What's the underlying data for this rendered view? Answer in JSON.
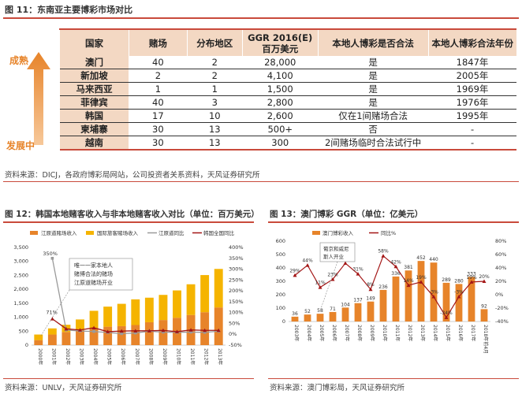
{
  "fig11": {
    "title": "图 11：东南亚主要博彩市场对比",
    "headers": [
      "国家",
      "赌场",
      "分布地区",
      "GGR 2016(E)\n百万美元",
      "本地人博彩是否合法",
      "本地人博彩合法年份"
    ],
    "rows": [
      [
        "澳门",
        "40",
        "2",
        "28,000",
        "是",
        "1847年"
      ],
      [
        "新加坡",
        "2",
        "2",
        "4,100",
        "是",
        "2005年"
      ],
      [
        "马来西亚",
        "1",
        "1",
        "1,500",
        "是",
        "1969年"
      ],
      [
        "菲律宾",
        "40",
        "3",
        "2,800",
        "是",
        "1976年"
      ],
      [
        "韩国",
        "17",
        "10",
        "2,600",
        "仅在1间赌场合法",
        "1995年"
      ],
      [
        "柬埔寨",
        "30",
        "13",
        "500+",
        "否",
        "-"
      ],
      [
        "越南",
        "30",
        "13",
        "300",
        "2间赌场临时合法试行中",
        "-"
      ]
    ],
    "arrow_top_label": "成熟",
    "arrow_bottom_label": "发展中",
    "source": "资料来源：DICJ，各政府博彩局网站，公司投资者关系资料，天风证券研究所"
  },
  "fig12": {
    "title": "图 12：韩国本地赌客收入与非本地赌客收入对比（单位：百万美元）",
    "source": "资料来源：UNLV，天风证券研究所",
    "annotation_lines": [
      "唯一一家本地人",
      "赌博合法的赌场",
      "江原道赌场开业"
    ],
    "callout_350": "350%",
    "callout_71": "71%"
  },
  "fig13": {
    "title": "图 13：澳门博彩 GGR（单位：亿美元）",
    "source": "资料来源：澳门博彩局，天风证券研究所",
    "annotation_lines": [
      "葡京和威尼",
      "斯人开业"
    ]
  },
  "chart_data": [
    {
      "type": "bar",
      "title": "韩国本地赌客收入与非本地赌客收入对比（单位：百万美元）",
      "categories": [
        "2000年",
        "2001年",
        "2002年",
        "2003年",
        "2004年",
        "2005年",
        "2006年",
        "2007年",
        "2008年",
        "2009年",
        "2010年",
        "2011年",
        "2012年",
        "2013年"
      ],
      "series": [
        {
          "name": "江原道赌场收入",
          "kind": "stacked-bar",
          "color": "#e7842a",
          "values": [
            180,
            380,
            470,
            540,
            610,
            660,
            680,
            720,
            820,
            900,
            980,
            1080,
            1180,
            1350
          ]
        },
        {
          "name": "国际旅客赌场收入",
          "kind": "stacked-bar",
          "color": "#f5b400",
          "values": [
            200,
            220,
            260,
            380,
            620,
            720,
            800,
            920,
            880,
            900,
            980,
            1100,
            1330,
            1380
          ]
        },
        {
          "name": "江原道同比",
          "kind": "line",
          "axis": "right",
          "color": "#9a9a9a",
          "values": [
            null,
            350,
            20,
            15,
            13,
            8,
            3,
            6,
            14,
            10,
            9,
            10,
            9,
            14
          ]
        },
        {
          "name": "韩国全国同比",
          "kind": "line",
          "axis": "right",
          "color": "#a31515",
          "values": [
            null,
            71,
            25,
            20,
            30,
            12,
            15,
            16,
            16,
            18,
            12,
            20,
            18,
            18
          ]
        }
      ],
      "yleft_ticks": [
        "0",
        "500",
        "1,000",
        "1,500",
        "2,000",
        "2,500",
        "3,000",
        "3,500"
      ],
      "yright_ticks": [
        "-50%",
        "0%",
        "50%",
        "100%",
        "150%",
        "200%",
        "250%",
        "300%",
        "350%",
        "400%"
      ],
      "ylim_left": [
        0,
        3500
      ],
      "ylim_right": [
        -50,
        400
      ]
    },
    {
      "type": "bar",
      "title": "澳门博彩 GGR（单位：亿美元）",
      "categories": [
        "2003年",
        "2004年",
        "2005年",
        "2006年",
        "2007年",
        "2008年",
        "2009年",
        "2010年",
        "2011年",
        "2012年",
        "2013年",
        "2014年",
        "2015年",
        "2016年",
        "2017年",
        "2018年前4月"
      ],
      "series": [
        {
          "name": "澳门博彩收入",
          "kind": "bar",
          "color": "#e7842a",
          "values": [
            36,
            52,
            58,
            71,
            104,
            137,
            149,
            236,
            336,
            381,
            452,
            440,
            289,
            280,
            333,
            92
          ]
        },
        {
          "name": "同比%",
          "kind": "line",
          "axis": "right",
          "color": "#a31515",
          "values": [
            29,
            44,
            11,
            23,
            47,
            31,
            8,
            58,
            42,
            14,
            19,
            -3,
            -34,
            -3,
            19,
            20
          ]
        }
      ],
      "bar_labels": [
        "36",
        "52",
        "58",
        "71",
        "104",
        "137",
        "149",
        "236",
        "336",
        "381",
        "452",
        "440",
        "289",
        "280",
        "333",
        "92"
      ],
      "line_labels": [
        "29%",
        "44%",
        "11%",
        "23%",
        "47%",
        "31%",
        "8%",
        "58%",
        "42%",
        "14%",
        "19%",
        "-3%",
        "-34%",
        "-3%",
        "19%",
        "20%"
      ],
      "yleft_ticks": [
        "0",
        "100",
        "200",
        "300",
        "400",
        "500",
        "600"
      ],
      "yright_ticks": [
        "-40%",
        "-20%",
        "0%",
        "20%",
        "40%",
        "60%",
        "80%"
      ],
      "ylim_left": [
        0,
        600
      ],
      "ylim_right": [
        -40,
        80
      ]
    }
  ]
}
